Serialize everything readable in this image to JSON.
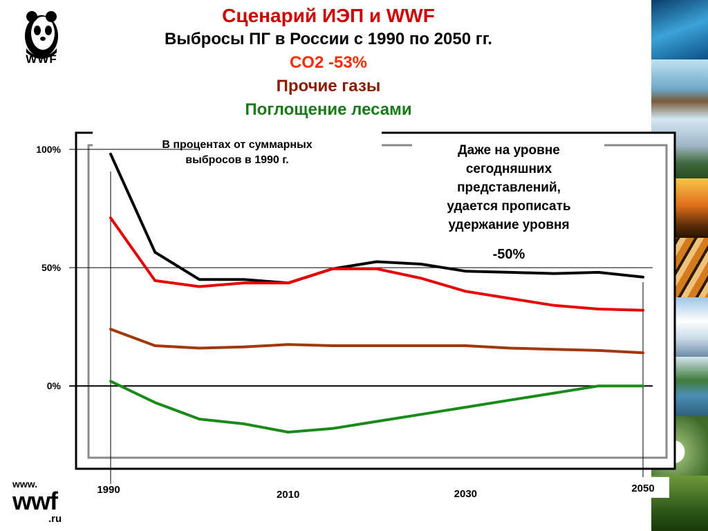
{
  "header": {
    "title_line1": "Сценарий ИЭП и WWF",
    "title_line2": "Выбросы ПГ в России с 1990 по 2050 гг.",
    "legend_co2": "CO2 -53%",
    "legend_other": "Прочие газы",
    "legend_forest": "Поглощение лесами"
  },
  "logo": {
    "text": "WWF",
    "url_www": "www.",
    "url_main": "wwf",
    "url_ru": ".ru"
  },
  "colors": {
    "total": "#000000",
    "co2": "#e60000",
    "other": "#a0380a",
    "forest": "#1a8a1a",
    "title_red": "#cc0000",
    "co2_label": "#ff2a00",
    "other_label": "#8b1a00",
    "forest_label": "#1a7a1a"
  },
  "chart_data": {
    "type": "line",
    "x": [
      1990,
      1995,
      2000,
      2005,
      2010,
      2015,
      2020,
      2025,
      2030,
      2035,
      2040,
      2045,
      2050
    ],
    "series": [
      {
        "values": [
          98,
          56.5,
          45,
          45,
          43.5,
          49.5,
          52.5,
          51.5,
          48.5,
          48,
          47.5,
          48,
          46
        ]
      },
      {
        "name": "CO2 -53%",
        "values": [
          71,
          44.5,
          42,
          43.5,
          43.5,
          49.5,
          49.5,
          45.5,
          40,
          37,
          34,
          32.5,
          32
        ]
      },
      {
        "name": "Прочие газы",
        "values": [
          24,
          17,
          16,
          16.5,
          17.5,
          17,
          17,
          17,
          17,
          16,
          15.5,
          15,
          14
        ]
      },
      {
        "name": "Поглощение лесами",
        "values": [
          2,
          -7,
          -14,
          -16,
          -19.5,
          -18,
          -15,
          -12,
          -9,
          -6,
          -3,
          0,
          0
        ]
      }
    ],
    "ylim": [
      -35,
      107
    ],
    "xlim": [
      1990,
      2050
    ],
    "y_ticks": [
      "100%",
      "50%",
      "0%"
    ],
    "y_tick_values": [
      100,
      50,
      0
    ],
    "x_ticks": [
      "1990",
      "2010",
      "2030",
      "2050"
    ],
    "x_tick_values": [
      1990,
      2010,
      2030,
      2050
    ],
    "box_label": "В процентах от суммарных выбросов в 1990 г.",
    "box_label_line1": "В процентах от суммарных",
    "box_label_line2": "выбросов в 1990 г.",
    "annotation_lines": [
      "Даже на уровне",
      "сегодняшних",
      "представлений,",
      "удается прописать",
      "удержание уровня"
    ],
    "annotation_value": "-50%"
  }
}
